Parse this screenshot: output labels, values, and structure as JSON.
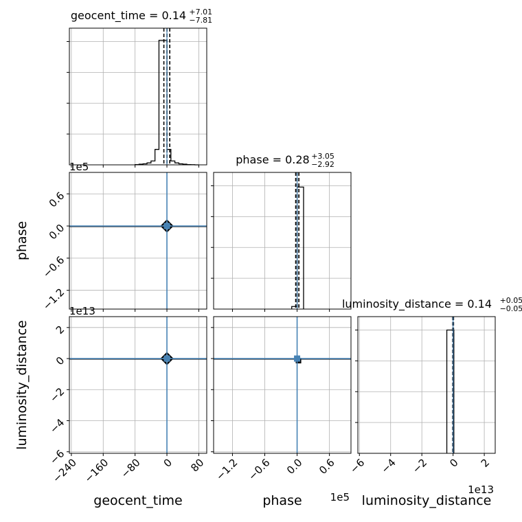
{
  "colors": {
    "truth": "#4682b4",
    "hist": "#000000",
    "grid": "#b0b0b0",
    "frame": "#000000",
    "background": "#ffffff"
  },
  "chart_data": [
    {
      "panel": "geocent_time-hist",
      "type": "histogram",
      "title_main": "geocent_time = 0.14",
      "title_sup": "+7.01",
      "title_sub": "−7.81",
      "xlim": [
        -245,
        100
      ],
      "xticks": [
        -240,
        -160,
        -80,
        0,
        80
      ],
      "grid": true,
      "bin_edges": [
        -80,
        -70,
        -60,
        -50,
        -40,
        -30,
        -20,
        -10,
        0,
        10,
        20,
        30,
        40,
        50,
        60,
        70,
        80
      ],
      "counts": [
        0.002,
        0.005,
        0.008,
        0.015,
        0.03,
        0.12,
        0.97,
        0.97,
        0.12,
        0.03,
        0.015,
        0.008,
        0.005,
        0.002,
        0.001,
        0.0
      ],
      "quantiles": [
        -7.67,
        0.14,
        7.15
      ],
      "truth": 0
    },
    {
      "panel": "phase-vs-geocent_time",
      "type": "scatter-contour",
      "xlim": [
        -245,
        100
      ],
      "ylim": [
        -1.55,
        1.0
      ],
      "xticks": [
        -240,
        -160,
        -80,
        0,
        80
      ],
      "yticks": [
        -1.2,
        -0.6,
        0.0,
        0.6
      ],
      "ytick_labels": [
        "−1.2",
        "−0.6",
        "0.0",
        "0.6"
      ],
      "ylabel": "phase",
      "y_offset_text": "1e5",
      "grid": true,
      "truth": [
        0,
        0
      ]
    },
    {
      "panel": "phase-hist",
      "type": "histogram",
      "title_main": "phase = 0.28",
      "title_sup": "+3.05",
      "title_sub": "−2.92",
      "xlim": [
        -1.55,
        1.0
      ],
      "xticks": [
        -1.2,
        -0.6,
        0.0,
        0.6
      ],
      "grid": true,
      "bin_edges": [
        -0.1,
        0.0,
        0.12
      ],
      "counts": [
        0.02,
        0.95
      ],
      "quantiles": [
        -0.026,
        2.8e-06,
        0.033
      ],
      "truth": 0
    },
    {
      "panel": "luminosity_distance-vs-geocent_time",
      "type": "scatter-contour",
      "xlim": [
        -245,
        100
      ],
      "ylim": [
        -6.1,
        2.7
      ],
      "xticks": [
        -240,
        -160,
        -80,
        0,
        80
      ],
      "xtick_labels": [
        "−240",
        "−160",
        "−80",
        "0",
        "80"
      ],
      "yticks": [
        -6,
        -4,
        -2,
        0,
        2
      ],
      "ytick_labels": [
        "−6",
        "−4",
        "−2",
        "0",
        "2"
      ],
      "xlabel": "geocent_time",
      "ylabel": "luminosity_distance",
      "y_offset_text": "1e13",
      "grid": true,
      "truth": [
        0,
        0
      ]
    },
    {
      "panel": "luminosity_distance-vs-phase",
      "type": "scatter-contour",
      "xlim": [
        -1.55,
        1.0
      ],
      "ylim": [
        -6.1,
        2.7
      ],
      "xticks": [
        -1.2,
        -0.6,
        0.0,
        0.6
      ],
      "xtick_labels": [
        "−1.2",
        "−0.6",
        "0.0",
        "0.6"
      ],
      "yticks": [
        -6,
        -4,
        -2,
        0,
        2
      ],
      "xlabel": "phase",
      "x_offset_text": "1e5",
      "grid": true,
      "truth": [
        0,
        0
      ]
    },
    {
      "panel": "luminosity_distance-hist",
      "type": "histogram",
      "title_main": "luminosity_distance = 0.14",
      "title_sup": "+0.05",
      "title_sub": "−0.05",
      "xlim": [
        -6.1,
        2.7
      ],
      "xticks": [
        -6,
        -4,
        -2,
        0,
        2
      ],
      "xtick_labels": [
        "−6",
        "−4",
        "−2",
        "0",
        "2"
      ],
      "xlabel": "luminosity_distance",
      "x_offset_text": "1e13",
      "grid": true,
      "bin_edges": [
        -0.4,
        0.0,
        0.05
      ],
      "counts": [
        0.96,
        0.96
      ],
      "quantiles": [
        -0.02,
        0.0,
        0.03
      ],
      "truth": 0
    }
  ]
}
